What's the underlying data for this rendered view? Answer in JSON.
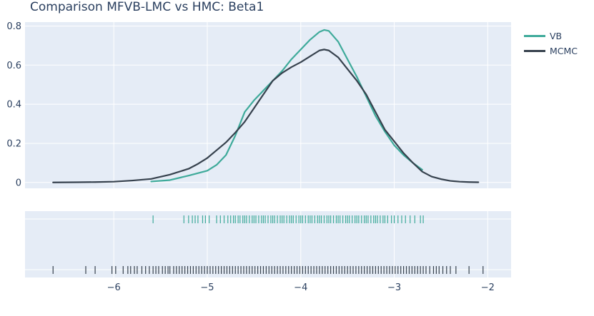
{
  "chart_data": {
    "type": "line",
    "title": "Comparison MFVB-LMC vs HMC: Beta1",
    "xlabel": "",
    "ylabel": "",
    "xlim": [
      -6.95,
      -1.75
    ],
    "ylim": [
      -0.03,
      0.82
    ],
    "x_ticks": [
      -6,
      -5,
      -4,
      -3,
      -2
    ],
    "x_tick_labels": [
      "−6",
      "−5",
      "−4",
      "−3",
      "−2"
    ],
    "y_ticks": [
      0,
      0.2,
      0.4,
      0.6,
      0.8
    ],
    "y_tick_labels": [
      "0",
      "0.2",
      "0.4",
      "0.6",
      "0.8"
    ],
    "grid": true,
    "legend_position": "right",
    "series": [
      {
        "name": "VB",
        "color": "#3eaa9a",
        "x": [
          -5.6,
          -5.4,
          -5.2,
          -5.0,
          -4.9,
          -4.8,
          -4.7,
          -4.6,
          -4.5,
          -4.4,
          -4.3,
          -4.2,
          -4.1,
          -4.0,
          -3.9,
          -3.8,
          -3.75,
          -3.7,
          -3.6,
          -3.5,
          -3.4,
          -3.3,
          -3.2,
          -3.1,
          -3.0,
          -2.9,
          -2.8,
          -2.7
        ],
        "values": [
          0.005,
          0.012,
          0.035,
          0.06,
          0.09,
          0.14,
          0.24,
          0.36,
          0.42,
          0.47,
          0.52,
          0.57,
          0.63,
          0.68,
          0.73,
          0.77,
          0.78,
          0.775,
          0.72,
          0.63,
          0.54,
          0.44,
          0.34,
          0.26,
          0.19,
          0.14,
          0.1,
          0.065
        ]
      },
      {
        "name": "MCMC",
        "color": "#36414d",
        "x": [
          -6.65,
          -6.4,
          -6.2,
          -6.0,
          -5.8,
          -5.6,
          -5.4,
          -5.2,
          -5.1,
          -5.0,
          -4.9,
          -4.8,
          -4.7,
          -4.6,
          -4.5,
          -4.4,
          -4.3,
          -4.2,
          -4.1,
          -4.0,
          -3.9,
          -3.8,
          -3.75,
          -3.7,
          -3.6,
          -3.5,
          -3.4,
          -3.3,
          -3.2,
          -3.1,
          -3.0,
          -2.9,
          -2.8,
          -2.7,
          -2.6,
          -2.5,
          -2.4,
          -2.3,
          -2.2,
          -2.1
        ],
        "values": [
          0.0,
          0.001,
          0.002,
          0.004,
          0.01,
          0.018,
          0.04,
          0.07,
          0.095,
          0.125,
          0.165,
          0.205,
          0.255,
          0.31,
          0.38,
          0.45,
          0.52,
          0.56,
          0.59,
          0.615,
          0.645,
          0.675,
          0.68,
          0.675,
          0.64,
          0.58,
          0.52,
          0.45,
          0.36,
          0.27,
          0.21,
          0.15,
          0.1,
          0.055,
          0.03,
          0.017,
          0.008,
          0.004,
          0.002,
          0.001
        ]
      }
    ],
    "rug": {
      "VB": [
        -5.58,
        -5.25,
        -5.2,
        -5.16,
        -5.13,
        -5.1,
        -5.05,
        -5.02,
        -4.98,
        -4.9,
        -4.86,
        -4.82,
        -4.78,
        -4.75,
        -4.72,
        -4.7,
        -4.67,
        -4.65,
        -4.62,
        -4.6,
        -4.58,
        -4.55,
        -4.52,
        -4.5,
        -4.48,
        -4.45,
        -4.42,
        -4.4,
        -4.38,
        -4.35,
        -4.32,
        -4.3,
        -4.28,
        -4.25,
        -4.22,
        -4.2,
        -4.18,
        -4.15,
        -4.12,
        -4.1,
        -4.08,
        -4.05,
        -4.02,
        -4.0,
        -3.98,
        -3.95,
        -3.92,
        -3.9,
        -3.88,
        -3.85,
        -3.82,
        -3.8,
        -3.78,
        -3.75,
        -3.72,
        -3.7,
        -3.68,
        -3.65,
        -3.62,
        -3.6,
        -3.58,
        -3.55,
        -3.52,
        -3.5,
        -3.48,
        -3.45,
        -3.42,
        -3.4,
        -3.38,
        -3.35,
        -3.32,
        -3.3,
        -3.28,
        -3.25,
        -3.22,
        -3.2,
        -3.18,
        -3.15,
        -3.12,
        -3.1,
        -3.07,
        -3.03,
        -3.0,
        -2.96,
        -2.92,
        -2.88,
        -2.83,
        -2.78,
        -2.72,
        -2.69
      ],
      "MCMC": [
        -6.65,
        -6.3,
        -6.2,
        -6.02,
        -5.98,
        -5.9,
        -5.85,
        -5.82,
        -5.78,
        -5.75,
        -5.7,
        -5.66,
        -5.62,
        -5.58,
        -5.55,
        -5.52,
        -5.48,
        -5.45,
        -5.42,
        -5.4,
        -5.36,
        -5.33,
        -5.3,
        -5.27,
        -5.24,
        -5.21,
        -5.18,
        -5.15,
        -5.12,
        -5.09,
        -5.06,
        -5.03,
        -5.0,
        -4.97,
        -4.94,
        -4.91,
        -4.88,
        -4.85,
        -4.82,
        -4.79,
        -4.76,
        -4.73,
        -4.7,
        -4.67,
        -4.64,
        -4.61,
        -4.58,
        -4.55,
        -4.52,
        -4.49,
        -4.46,
        -4.43,
        -4.4,
        -4.37,
        -4.34,
        -4.31,
        -4.28,
        -4.25,
        -4.22,
        -4.19,
        -4.16,
        -4.13,
        -4.1,
        -4.07,
        -4.04,
        -4.01,
        -3.98,
        -3.95,
        -3.92,
        -3.89,
        -3.86,
        -3.83,
        -3.8,
        -3.77,
        -3.74,
        -3.71,
        -3.68,
        -3.65,
        -3.62,
        -3.59,
        -3.56,
        -3.53,
        -3.5,
        -3.47,
        -3.44,
        -3.41,
        -3.38,
        -3.35,
        -3.32,
        -3.29,
        -3.26,
        -3.23,
        -3.2,
        -3.17,
        -3.14,
        -3.11,
        -3.08,
        -3.05,
        -3.02,
        -2.99,
        -2.96,
        -2.93,
        -2.9,
        -2.87,
        -2.84,
        -2.81,
        -2.78,
        -2.75,
        -2.72,
        -2.69,
        -2.66,
        -2.62,
        -2.58,
        -2.55,
        -2.52,
        -2.48,
        -2.44,
        -2.4,
        -2.34,
        -2.2,
        -2.05
      ]
    }
  }
}
